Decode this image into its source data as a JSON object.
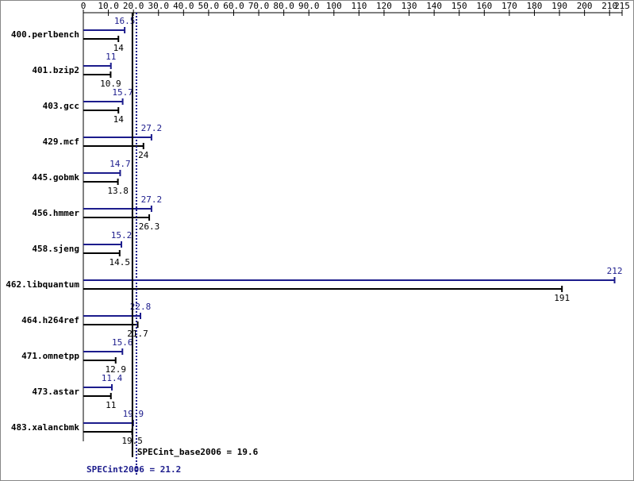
{
  "chart_data": {
    "type": "bar",
    "orientation": "horizontal",
    "categories": [
      "400.perlbench",
      "401.bzip2",
      "403.gcc",
      "429.mcf",
      "445.gobmk",
      "456.hmmer",
      "458.sjeng",
      "462.libquantum",
      "464.h264ref",
      "471.omnetpp",
      "473.astar",
      "483.xalancbmk"
    ],
    "series": [
      {
        "color": "#1c1c8c",
        "values": [
          16.5,
          11.0,
          15.7,
          27.2,
          14.7,
          27.2,
          15.2,
          212,
          22.8,
          15.6,
          11.4,
          19.9
        ]
      },
      {
        "color": "#000000",
        "values": [
          14.0,
          10.9,
          14.0,
          24.0,
          13.8,
          26.3,
          14.5,
          191,
          21.7,
          12.9,
          11.0,
          19.5
        ]
      }
    ],
    "xlim": [
      0,
      215
    ],
    "xticks": [
      0,
      {
        "value": 10,
        "label": "10.0"
      },
      {
        "value": 20,
        "label": "20.0"
      },
      {
        "value": 30,
        "label": "30.0"
      },
      {
        "value": 40,
        "label": "40.0"
      },
      {
        "value": 50,
        "label": "50.0"
      },
      {
        "value": 60,
        "label": "60.0"
      },
      {
        "value": 70,
        "label": "70.0"
      },
      {
        "value": 80,
        "label": "80.0"
      },
      {
        "value": 90,
        "label": "90.0"
      },
      100,
      110,
      120,
      130,
      140,
      150,
      160,
      170,
      180,
      190,
      200,
      210,
      215
    ],
    "reference_lines": [
      {
        "label": "SPECint_base2006 = 19.6",
        "value": 19.6,
        "color": "#000000",
        "style": "solid"
      },
      {
        "label": "SPECint2006 = 21.2",
        "value": 21.2,
        "color": "#1c1c8c",
        "style": "dotted"
      }
    ]
  }
}
